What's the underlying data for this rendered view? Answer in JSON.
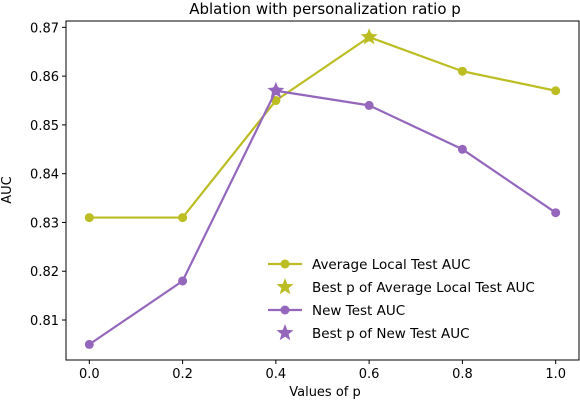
{
  "chart_data": {
    "type": "line",
    "title": "Ablation with personalization ratio p",
    "xlabel": "Values of p",
    "ylabel": "AUC",
    "x": [
      0.0,
      0.2,
      0.4,
      0.6,
      0.8,
      1.0
    ],
    "x_tick_labels": [
      "0.0",
      "0.2",
      "0.4",
      "0.6",
      "0.8",
      "1.0"
    ],
    "y_ticks": [
      0.81,
      0.82,
      0.83,
      0.84,
      0.85,
      0.86,
      0.87
    ],
    "y_tick_labels": [
      "0.81",
      "0.82",
      "0.83",
      "0.84",
      "0.85",
      "0.86",
      "0.87"
    ],
    "xlim": [
      -0.05,
      1.05
    ],
    "ylim": [
      0.8018,
      0.8713
    ],
    "grid": false,
    "legend_position": "lower-right",
    "series": [
      {
        "name": "Average Local Test AUC",
        "color": "#bcbd22",
        "values": [
          0.831,
          0.831,
          0.855,
          0.868,
          0.861,
          0.857
        ],
        "best_name": "Best p of Average Local Test AUC",
        "best": {
          "x": 0.6,
          "y": 0.868
        }
      },
      {
        "name": "New Test AUC",
        "color": "#9467bd",
        "values": [
          0.805,
          0.818,
          0.857,
          0.854,
          0.845,
          0.832
        ],
        "best_name": "Best p of New Test AUC",
        "best": {
          "x": 0.4,
          "y": 0.857
        }
      }
    ]
  }
}
